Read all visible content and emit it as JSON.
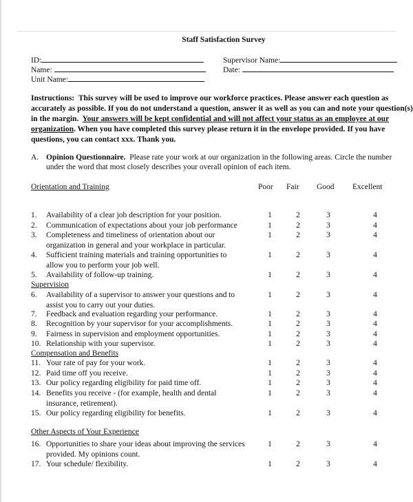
{
  "title": "Staff Satisfaction Survey",
  "fields": {
    "id": "ID:",
    "name": "Name:",
    "unit": "Unit Name:",
    "supervisor": "Supervisor Name:",
    "date": "Date:"
  },
  "instructions": {
    "label": "Instructions:",
    "text1": "This survey will be used to improve our workforce practices.  Please answer each question as accurately as possible.  If you do not understand a question, answer it as well as you can and note your question(s) in the margin.",
    "underlined": "Your answers will be kept confidential and will not affect your status as an employee at our organization",
    "text2": ".  When you have completed this survey please return it in the envelope provided.  If you have questions, you can contact xxx.  Thank you."
  },
  "sectionA": {
    "letter": "A.",
    "heading": "Opinion Questionnaire.",
    "line1": "Please rate your work at our organization in the following areas.  Circle the number",
    "line2": "under the word that most closely describes your overall opinion of each item."
  },
  "columns": [
    "Poor",
    "Fair",
    "Good",
    "Excellent"
  ],
  "rows": [
    {
      "type": "section",
      "text": "Orientation and Training"
    },
    {
      "type": "item",
      "num": "1.",
      "lines": [
        "Availability of a clear job description for your position."
      ]
    },
    {
      "type": "item",
      "num": "2.",
      "lines": [
        "Communication of expectations about your job performance"
      ]
    },
    {
      "type": "item",
      "num": "3.",
      "lines": [
        "Completeness and timeliness of orientation about our",
        "organization in general and your workplace in particular."
      ]
    },
    {
      "type": "item",
      "num": "4.",
      "lines": [
        "Sufficient training materials and training opportunities to",
        "allow you to perform your job well."
      ]
    },
    {
      "type": "item",
      "num": "5.",
      "lines": [
        "Availability of follow-up training."
      ]
    },
    {
      "type": "section",
      "text": "Supervision"
    },
    {
      "type": "item",
      "num": "6.",
      "lines": [
        "Availability of a supervisor to answer your questions and to",
        "assist you to carry out your duties."
      ]
    },
    {
      "type": "item",
      "num": "7.",
      "lines": [
        "Feedback and evaluation regarding your performance."
      ]
    },
    {
      "type": "item",
      "num": "8.",
      "lines": [
        "Recognition by your supervisor for your accomplishments."
      ]
    },
    {
      "type": "item",
      "num": "9.",
      "lines": [
        "Fairness in supervision and employment opportunities."
      ]
    },
    {
      "type": "item",
      "num": "10.",
      "lines": [
        "Relationship with your supervisor."
      ]
    },
    {
      "type": "section",
      "text": "Compensation and Benefits"
    },
    {
      "type": "item",
      "num": "11.",
      "lines": [
        "Your rate of pay for your work."
      ]
    },
    {
      "type": "item",
      "num": "12.",
      "lines": [
        "Paid time off you receive."
      ]
    },
    {
      "type": "item",
      "num": "13.",
      "lines": [
        "Our policy regarding eligibility for paid time off."
      ]
    },
    {
      "type": "item",
      "num": "14.",
      "lines": [
        "Benefits you receive - (for example, health and dental",
        "insurance, retirement)."
      ]
    },
    {
      "type": "item",
      "num": "15.",
      "lines": [
        "Our policy regarding eligibility for benefits."
      ]
    },
    {
      "type": "section",
      "text": "Other Aspects of Your Experience"
    },
    {
      "type": "item",
      "num": "16.",
      "lines": [
        "Opportunities to share your ideas about improving the services",
        "provided.  My opinions count."
      ]
    },
    {
      "type": "item",
      "num": "17.",
      "lines": [
        "Your schedule/ flexibility."
      ]
    }
  ],
  "scale": [
    "1",
    "2",
    "3",
    "4"
  ]
}
